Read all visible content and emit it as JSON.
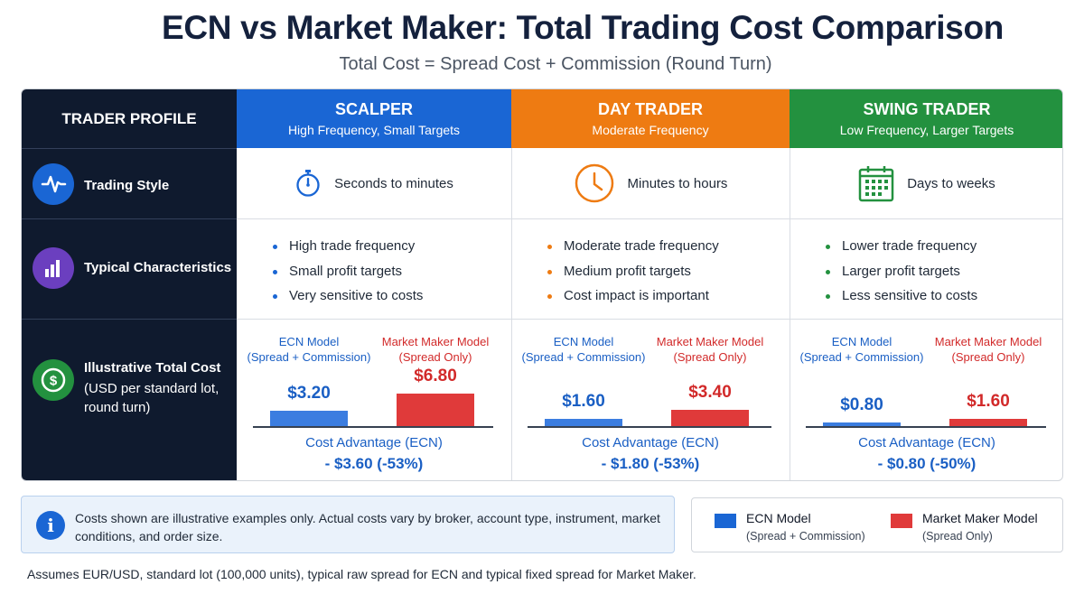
{
  "title": "ECN vs Market Maker: Total Trading Cost Comparison",
  "subtitle": "Total Cost = Spread Cost + Commission (Round Turn)",
  "header": {
    "profile": "TRADER PROFILE",
    "scalper": {
      "title": "SCALPER",
      "sub": "High Frequency, Small Targets",
      "color": "#1a66d4"
    },
    "day": {
      "title": "DAY TRADER",
      "sub": "Moderate Frequency",
      "color": "#ee7b12"
    },
    "swing": {
      "title": "SWING TRADER",
      "sub": "Low Frequency, Larger Targets",
      "color": "#23913f"
    }
  },
  "rows": {
    "style": {
      "label": "Trading Style",
      "icon": "pulse-icon"
    },
    "characteristics": {
      "label": "Typical Characteristics",
      "icon": "bar-chart-icon"
    },
    "cost": {
      "label": "Illustrative Total Cost",
      "sub1": "(USD per standard lot,",
      "sub2": "round turn)",
      "icon": "dollar-icon"
    }
  },
  "styles": {
    "scalper": {
      "text": "Seconds to minutes",
      "icon": "stopwatch-icon"
    },
    "day": {
      "text": "Minutes to hours",
      "icon": "clock-icon"
    },
    "swing": {
      "text": "Days to weeks",
      "icon": "calendar-icon"
    }
  },
  "characteristics": {
    "scalper": [
      "High trade frequency",
      "Small profit targets",
      "Very sensitive to costs"
    ],
    "day": [
      "Moderate trade frequency",
      "Medium profit targets",
      "Cost impact is important"
    ],
    "swing": [
      "Lower trade frequency",
      "Larger profit targets",
      "Less sensitive to costs"
    ]
  },
  "model_labels": {
    "ecn": "ECN Model",
    "ecn_sub": "(Spread + Commission)",
    "mm": "Market Maker Model",
    "mm_sub": "(Spread Only)"
  },
  "advantage_label": "Cost Advantage (ECN)",
  "chart_data": {
    "type": "bar",
    "title": "Illustrative Total Cost",
    "ylabel": "USD per standard lot, round turn",
    "categories": [
      "SCALPER",
      "DAY TRADER",
      "SWING TRADER"
    ],
    "series": [
      {
        "name": "ECN Model",
        "color": "#3b7de0",
        "values": [
          3.2,
          1.6,
          0.8
        ],
        "labels": [
          "$3.20",
          "$1.60",
          "$0.80"
        ]
      },
      {
        "name": "Market Maker Model",
        "color": "#e03a3a",
        "values": [
          6.8,
          3.4,
          1.6
        ],
        "labels": [
          "$6.80",
          "$3.40",
          "$1.60"
        ]
      }
    ],
    "advantage": [
      "- $3.60 (-53%)",
      "- $1.80 (-53%)",
      "- $0.80 (-50%)"
    ],
    "ylim": [
      0,
      6.8
    ]
  },
  "note": "Costs shown are illustrative examples only. Actual costs vary by broker, account type, instrument, market conditions, and order size.",
  "legend": {
    "ecn": "ECN Model",
    "ecn_sub": "(Spread + Commission)",
    "mm": "Market Maker Model",
    "mm_sub": "(Spread Only)"
  },
  "footnote": "Assumes EUR/USD, standard lot (100,000 units), typical raw spread for ECN and typical fixed spread for Market Maker."
}
